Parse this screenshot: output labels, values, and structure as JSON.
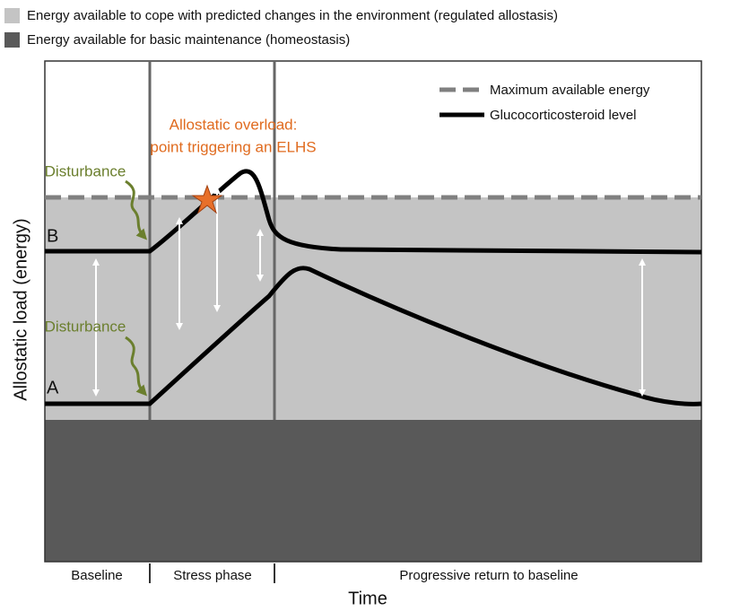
{
  "legend": [
    "Energy available to cope with predicted changes in the environment (regulated allostasis)",
    "Energy available for basic maintenance (homeostasis)"
  ],
  "key": [
    "Maximum available energy",
    "Glucocorticosteroid level"
  ],
  "overload": [
    "Allostatic overload:",
    "point triggering an ELHS"
  ],
  "disturbances": [
    "Disturbance",
    "Disturbance"
  ],
  "curves": [
    "B",
    "A"
  ],
  "phases": [
    "Baseline",
    "Stress phase",
    "Progressive return to baseline"
  ],
  "x_label": "Time",
  "y_label": "Allostatic load (energy)"
}
